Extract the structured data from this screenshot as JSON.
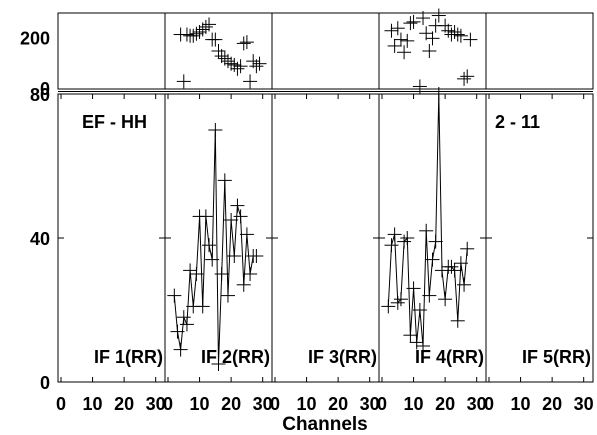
{
  "chart_data": {
    "type": "scatter",
    "title_left": "EF - HH",
    "title_right": "2 - 11",
    "xlabel": "Channels",
    "x_ticks": [
      "0",
      "10",
      "20",
      "30"
    ],
    "xlim": [
      0,
      32
    ],
    "top_ylim": [
      0,
      300
    ],
    "top_yticks": [
      "200",
      "0"
    ],
    "top_ytick_values": [
      200,
      0
    ],
    "bottom_ylim": [
      0,
      80
    ],
    "bottom_yticks": [
      "80",
      "40",
      "0"
    ],
    "bottom_ytick_values": [
      80,
      40,
      0
    ],
    "panels": [
      {
        "label": "IF 1(RR)",
        "phase": [],
        "amplitude": []
      },
      {
        "label": "IF 2(RR)",
        "phase": [
          [
            4,
            215
          ],
          [
            5,
            30
          ],
          [
            6,
            215
          ],
          [
            7,
            210
          ],
          [
            8,
            210
          ],
          [
            9,
            218
          ],
          [
            10,
            225
          ],
          [
            11,
            235
          ],
          [
            12,
            245
          ],
          [
            13,
            255
          ],
          [
            14,
            195
          ],
          [
            15,
            195
          ],
          [
            16,
            150
          ],
          [
            17,
            130
          ],
          [
            18,
            120
          ],
          [
            19,
            110
          ],
          [
            20,
            100
          ],
          [
            21,
            95
          ],
          [
            22,
            80
          ],
          [
            23,
            90
          ],
          [
            24,
            180
          ],
          [
            25,
            185
          ],
          [
            26,
            30
          ],
          [
            27,
            110
          ],
          [
            28,
            90
          ],
          [
            29,
            100
          ]
        ],
        "amplitude": [
          [
            2,
            24
          ],
          [
            3,
            14
          ],
          [
            4,
            9
          ],
          [
            5,
            18
          ],
          [
            6,
            16
          ],
          [
            7,
            31
          ],
          [
            8,
            21
          ],
          [
            9,
            30
          ],
          [
            10,
            46
          ],
          [
            11,
            21
          ],
          [
            12,
            46
          ],
          [
            13,
            38
          ],
          [
            14,
            34
          ],
          [
            15,
            70
          ],
          [
            16,
            5
          ],
          [
            17,
            30
          ],
          [
            18,
            56
          ],
          [
            19,
            24
          ],
          [
            20,
            45
          ],
          [
            21,
            35
          ],
          [
            22,
            49
          ],
          [
            23,
            46
          ],
          [
            24,
            27
          ],
          [
            25,
            41
          ],
          [
            26,
            30
          ],
          [
            27,
            35
          ],
          [
            28,
            35
          ]
        ]
      },
      {
        "label": "IF 3(RR)",
        "phase": [],
        "amplitude": []
      },
      {
        "label": "IF 4(RR)",
        "phase": [
          [
            3,
            230
          ],
          [
            4,
            170
          ],
          [
            5,
            240
          ],
          [
            6,
            195
          ],
          [
            7,
            145
          ],
          [
            8,
            190
          ],
          [
            9,
            260
          ],
          [
            10,
            265
          ],
          [
            11,
            -10
          ],
          [
            12,
            10
          ],
          [
            13,
            280
          ],
          [
            14,
            220
          ],
          [
            15,
            150
          ],
          [
            16,
            200
          ],
          [
            17,
            250
          ],
          [
            18,
            290
          ],
          [
            19,
            300
          ],
          [
            20,
            250
          ],
          [
            21,
            230
          ],
          [
            22,
            215
          ],
          [
            23,
            225
          ],
          [
            24,
            215
          ],
          [
            25,
            210
          ],
          [
            26,
            40
          ],
          [
            27,
            50
          ],
          [
            28,
            195
          ]
        ],
        "amplitude": [
          [
            2,
            21
          ],
          [
            3,
            38
          ],
          [
            4,
            41
          ],
          [
            5,
            22
          ],
          [
            6,
            23
          ],
          [
            7,
            39
          ],
          [
            8,
            40
          ],
          [
            9,
            13
          ],
          [
            10,
            26
          ],
          [
            11,
            11
          ],
          [
            12,
            20
          ],
          [
            13,
            10
          ],
          [
            14,
            42
          ],
          [
            15,
            24
          ],
          [
            16,
            34
          ],
          [
            17,
            39
          ],
          [
            18,
            80
          ],
          [
            19,
            31
          ],
          [
            20,
            23
          ],
          [
            21,
            32
          ],
          [
            22,
            32
          ],
          [
            23,
            31
          ],
          [
            24,
            17
          ],
          [
            25,
            33
          ],
          [
            26,
            27
          ],
          [
            27,
            37
          ]
        ]
      },
      {
        "label": "IF 5(RR)",
        "phase": [],
        "amplitude": []
      }
    ]
  }
}
